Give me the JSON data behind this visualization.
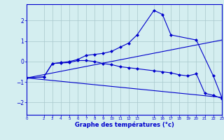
{
  "xlabel": "Graphe des températures (°c)",
  "background_color": "#d4eef0",
  "line_color": "#0000cc",
  "grid_color": "#a8c8cc",
  "xlim": [
    0,
    23
  ],
  "ylim": [
    -2.6,
    2.8
  ],
  "yticks": [
    -2,
    -1,
    0,
    1,
    2
  ],
  "xticks": [
    0,
    2,
    3,
    4,
    5,
    6,
    7,
    8,
    9,
    10,
    11,
    12,
    13,
    15,
    16,
    17,
    18,
    19,
    20,
    21,
    22,
    23
  ],
  "line1_x": [
    0,
    2,
    3,
    4,
    5,
    6,
    7,
    8,
    9,
    10,
    11,
    12,
    13,
    15,
    16,
    17,
    20,
    22,
    23
  ],
  "line1_y": [
    -0.8,
    -0.75,
    -0.1,
    -0.05,
    0.0,
    0.1,
    0.3,
    0.35,
    0.4,
    0.5,
    0.7,
    0.9,
    1.3,
    2.5,
    2.3,
    1.3,
    1.05,
    -0.7,
    -1.75
  ],
  "line2_x": [
    0,
    2,
    3,
    4,
    5,
    6,
    7,
    8,
    9,
    10,
    11,
    12,
    13,
    15,
    16,
    17,
    18,
    19,
    20,
    21,
    22,
    23
  ],
  "line2_y": [
    -0.8,
    -0.75,
    -0.1,
    -0.07,
    -0.05,
    0.05,
    0.05,
    0.0,
    -0.1,
    -0.15,
    -0.25,
    -0.3,
    -0.35,
    -0.45,
    -0.5,
    -0.55,
    -0.65,
    -0.7,
    -0.6,
    -1.55,
    -1.65,
    -1.8
  ],
  "line3_x": [
    0,
    23
  ],
  "line3_y": [
    -0.8,
    -1.75
  ],
  "line4_x": [
    0,
    23
  ],
  "line4_y": [
    -0.8,
    1.05
  ]
}
